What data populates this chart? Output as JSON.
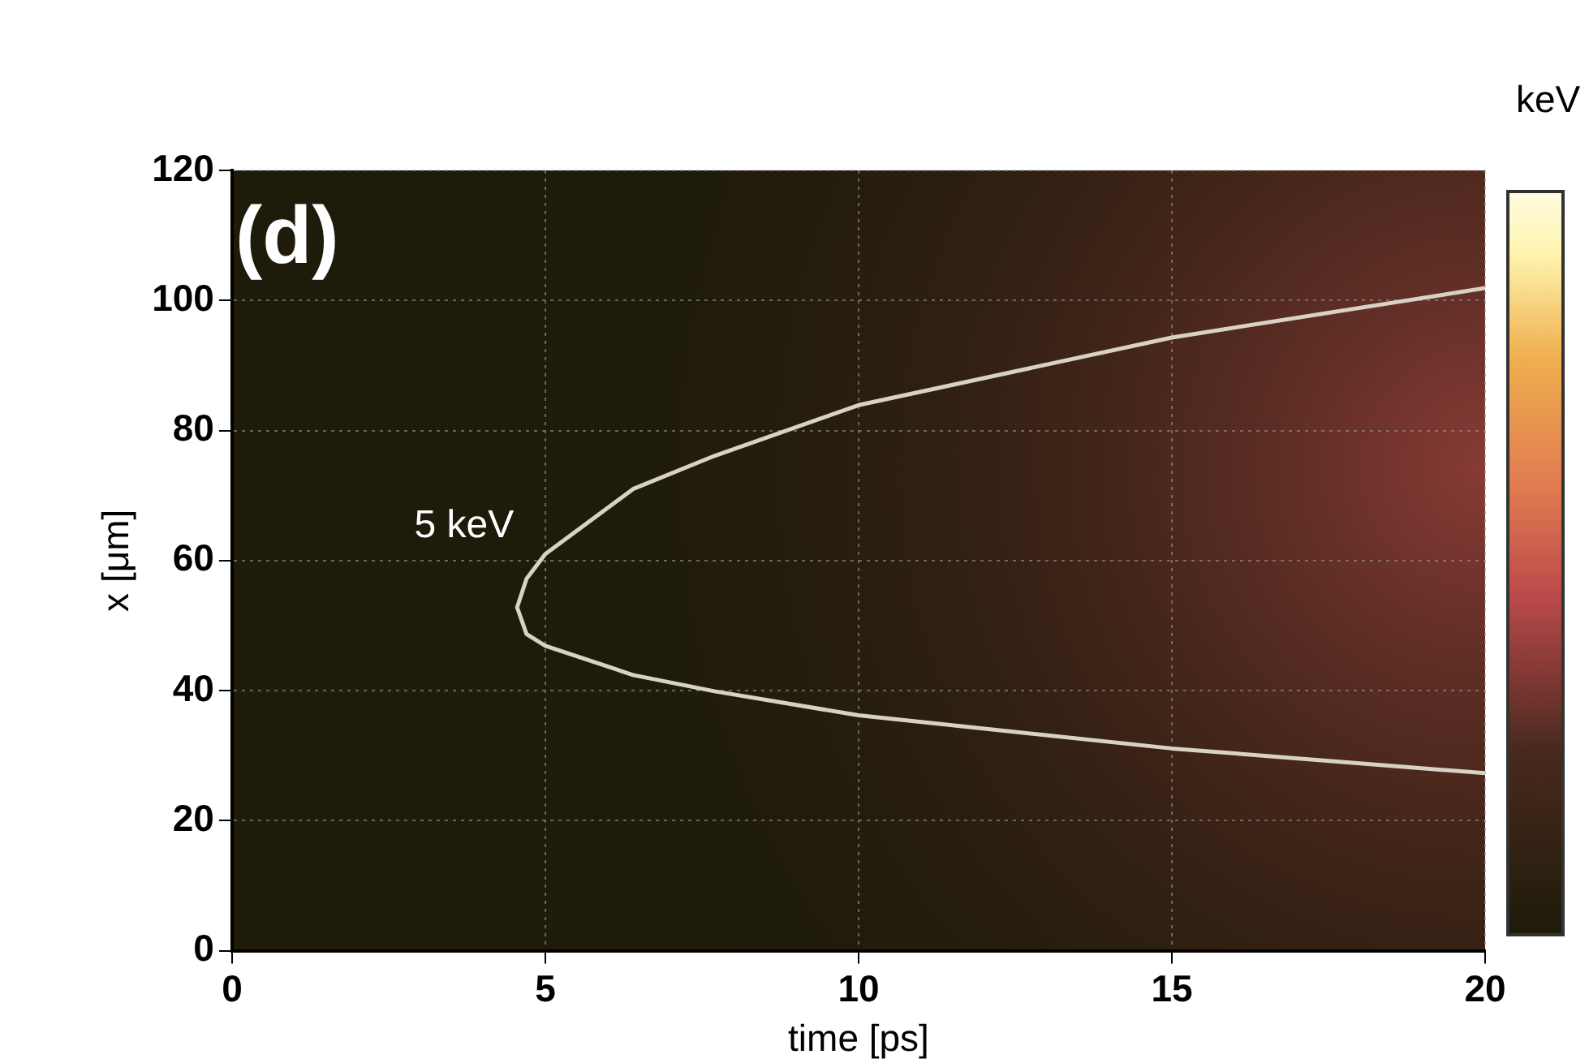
{
  "chart_data": {
    "type": "line",
    "xlabel": "time [ps]",
    "ylabel": "x [μm]",
    "clabel": "keV",
    "annotations": [
      "(d)"
    ],
    "xlim": [
      0,
      20
    ],
    "xticks": [
      0,
      5,
      10,
      15,
      20
    ],
    "ylim": [
      0,
      120
    ],
    "yticks": [
      0,
      20,
      40,
      60,
      80,
      100,
      120
    ],
    "grid": true,
    "legend": false,
    "marker": "none",
    "line_style": "solid",
    "series": [
      {
        "name": "5 keV",
        "color": "#d8d2c4",
        "x": [
          20,
          15,
          10,
          7.7,
          6.4,
          5,
          4.7,
          4.55,
          4.7,
          5,
          6.4,
          7.7,
          10,
          15,
          20
        ],
        "values": [
          27.3,
          31.1,
          36.2,
          39.9,
          42.4,
          46.9,
          48.7,
          52.8,
          57.2,
          61,
          71,
          76.1,
          83.9,
          94.3,
          101.9
        ]
      }
    ]
  }
}
